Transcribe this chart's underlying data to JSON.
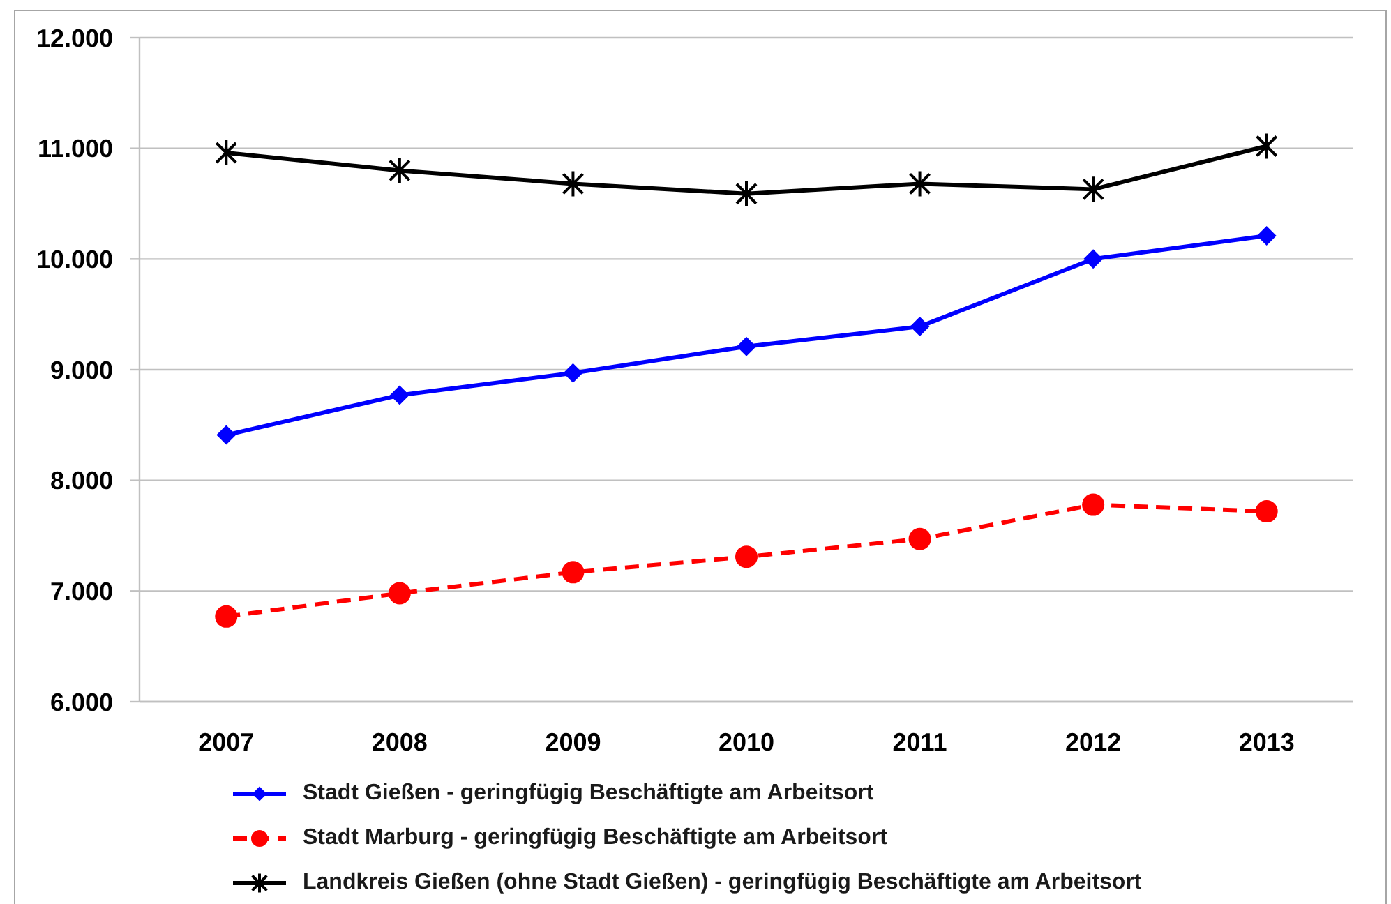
{
  "chart_data": {
    "type": "line",
    "categories": [
      "2007",
      "2008",
      "2009",
      "2010",
      "2011",
      "2012",
      "2013"
    ],
    "series": [
      {
        "name": "Stadt Gießen - geringfügig Beschäftigte am Arbeitsort",
        "color": "#0000ff",
        "marker": "diamond",
        "line_style": "solid",
        "values": [
          8410,
          8770,
          8970,
          9210,
          9390,
          10000,
          10210
        ]
      },
      {
        "name": "Stadt Marburg - geringfügig Beschäftigte am Arbeitsort",
        "color": "#ff0000",
        "marker": "circle",
        "line_style": "dashed",
        "values": [
          6770,
          6980,
          7170,
          7310,
          7470,
          7780,
          7720
        ]
      },
      {
        "name": "Landkreis Gießen (ohne Stadt Gießen) - geringfügig Beschäftigte am Arbeitsort",
        "color": "#000000",
        "marker": "cross",
        "line_style": "solid",
        "values": [
          10960,
          10800,
          10680,
          10590,
          10680,
          10630,
          11020
        ]
      }
    ],
    "ylim": [
      6000,
      12000
    ],
    "yticks": [
      {
        "value": 6000,
        "label": "6.000"
      },
      {
        "value": 7000,
        "label": "7.000"
      },
      {
        "value": 8000,
        "label": "8.000"
      },
      {
        "value": 9000,
        "label": "9.000"
      },
      {
        "value": 10000,
        "label": "10.000"
      },
      {
        "value": 11000,
        "label": "11.000"
      },
      {
        "value": 12000,
        "label": "12.000"
      }
    ],
    "grid": "y",
    "legend": "bottom"
  }
}
